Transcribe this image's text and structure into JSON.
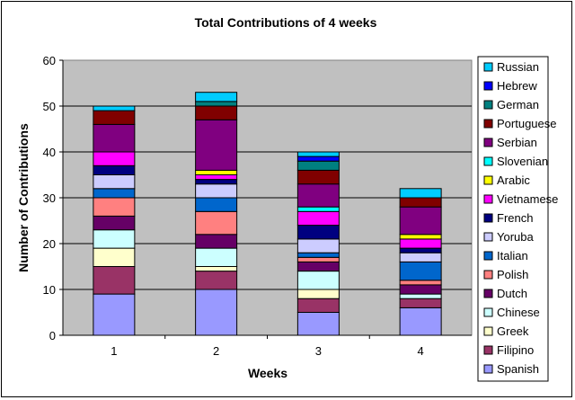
{
  "chart_data": {
    "type": "bar",
    "stacked": true,
    "title": "Total Contributions of 4 weeks",
    "xlabel": "Weeks",
    "ylabel": "Number of Contributions",
    "categories": [
      "1",
      "2",
      "3",
      "4"
    ],
    "ylim": [
      0,
      60
    ],
    "yticks": [
      0,
      10,
      20,
      30,
      40,
      50,
      60
    ],
    "grid": true,
    "plot_background": "#c0c0c0",
    "legend_position": "right",
    "series": [
      {
        "name": "Spanish",
        "color": "#9999ff",
        "values": [
          9,
          10,
          5,
          6
        ]
      },
      {
        "name": "Filipino",
        "color": "#993366",
        "values": [
          6,
          4,
          3,
          2
        ]
      },
      {
        "name": "Greek",
        "color": "#ffffcc",
        "values": [
          4,
          1,
          2,
          0
        ]
      },
      {
        "name": "Chinese",
        "color": "#ccffff",
        "values": [
          4,
          4,
          4,
          1
        ]
      },
      {
        "name": "Dutch",
        "color": "#660066",
        "values": [
          3,
          3,
          2,
          2
        ]
      },
      {
        "name": "Polish",
        "color": "#ff8080",
        "values": [
          4,
          5,
          1,
          1
        ]
      },
      {
        "name": "Italian",
        "color": "#0066cc",
        "values": [
          2,
          3,
          1,
          4
        ]
      },
      {
        "name": "Yoruba",
        "color": "#ccccff",
        "values": [
          3,
          3,
          3,
          2
        ]
      },
      {
        "name": "French",
        "color": "#000080",
        "values": [
          2,
          1,
          3,
          1
        ]
      },
      {
        "name": "Vietnamese",
        "color": "#ff00ff",
        "values": [
          3,
          1,
          3,
          2
        ]
      },
      {
        "name": "Arabic",
        "color": "#ffff00",
        "values": [
          0,
          1,
          0,
          1
        ]
      },
      {
        "name": "Slovenian",
        "color": "#00ffff",
        "values": [
          0,
          0,
          1,
          0
        ]
      },
      {
        "name": "Serbian",
        "color": "#800080",
        "values": [
          6,
          11,
          5,
          6
        ]
      },
      {
        "name": "Portuguese",
        "color": "#800000",
        "values": [
          3,
          3,
          3,
          2
        ]
      },
      {
        "name": "German",
        "color": "#008080",
        "values": [
          0,
          1,
          2,
          0
        ]
      },
      {
        "name": "Hebrew",
        "color": "#0000ff",
        "values": [
          0,
          0,
          1,
          0
        ]
      },
      {
        "name": "Russian",
        "color": "#00ccff",
        "values": [
          1,
          2,
          1,
          2
        ]
      }
    ]
  }
}
